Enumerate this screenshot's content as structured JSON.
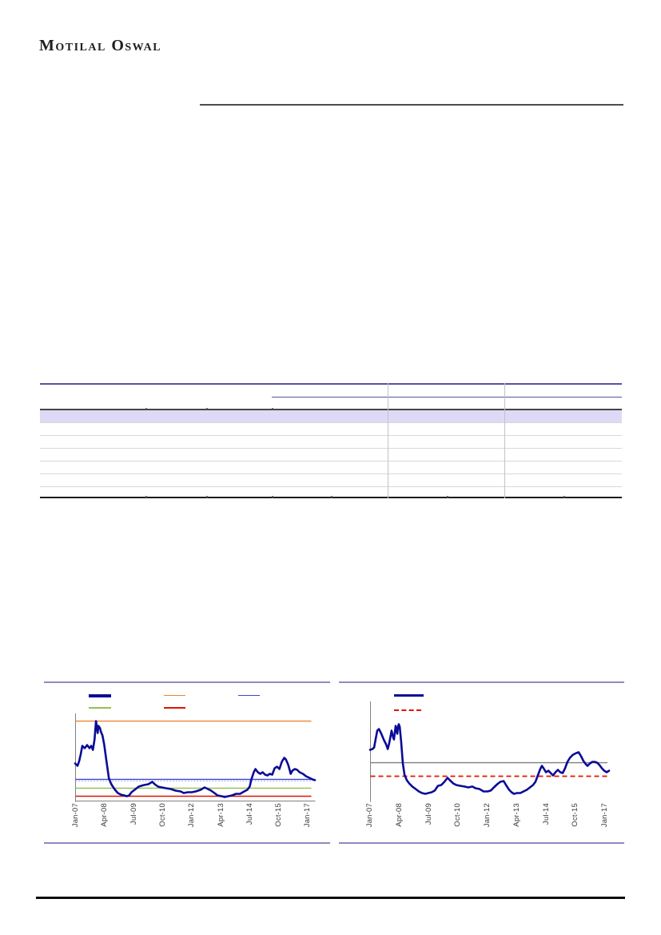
{
  "brand": {
    "logo_text": "Motilal Oswal"
  },
  "colors": {
    "header_rule": "#4d4d4d",
    "footer_rule": "#0e0e0e",
    "table_border_accent": "#5653a4",
    "table_dark_line": "#454545",
    "table_row_line": "#d9d9d9",
    "table_col_line": "#c3c3c3",
    "table_col_notch": "#4a4a4a",
    "table_highlight": "#dedaf5",
    "table_bottom": "#1c1c1c",
    "chart_frame": "#8f8ac5",
    "axis": "#808080",
    "tick_text": "#3a3a3a"
  },
  "chart_data": [
    {
      "type": "line",
      "title": "",
      "x_ticks": [
        "Jan-07",
        "Apr-08",
        "Jul-09",
        "Oct-10",
        "Jan-12",
        "Apr-13",
        "Jul-14",
        "Oct-15",
        "Jan-17"
      ],
      "ylim": [
        0,
        100
      ],
      "y_tick_labels": [],
      "grid": false,
      "legend_position": "top",
      "legend": [
        {
          "label": "",
          "swatch_color": "#0b0b97",
          "style": "solid-thick"
        },
        {
          "label": "",
          "swatch_color": "#ee8433",
          "style": "solid"
        },
        {
          "label": "",
          "swatch_color": "#3c45d0",
          "style": "solid"
        },
        {
          "label": "",
          "swatch_color": "#94bf4c",
          "style": "solid"
        },
        {
          "label": "",
          "swatch_color": "#e11300",
          "style": "solid"
        }
      ],
      "ref_lines": [
        {
          "name": "upper-band-line",
          "color": "#ee8433",
          "style": "solid",
          "value": 91.7
        },
        {
          "name": "mid-line",
          "color": "#3c45d0",
          "style": "solid",
          "value": 24.8
        },
        {
          "name": "mid-dotted-line",
          "color": "#97a0e8",
          "style": "dotted",
          "value": 23.0
        },
        {
          "name": "lower-band-line",
          "color": "#94bf4c",
          "style": "solid",
          "value": 14.7
        },
        {
          "name": "min-line",
          "color": "#e11300",
          "style": "solid",
          "value": 5.5
        }
      ],
      "series": [
        {
          "name": "primary-line",
          "color": "#0b0b97",
          "points": [
            [
              0,
              43.1
            ],
            [
              0.01,
              40.4
            ],
            [
              0.017,
              45.9
            ],
            [
              0.023,
              53.2
            ],
            [
              0.03,
              63.3
            ],
            [
              0.04,
              60.6
            ],
            [
              0.05,
              64.2
            ],
            [
              0.06,
              60.6
            ],
            [
              0.067,
              63.3
            ],
            [
              0.074,
              58.7
            ],
            [
              0.081,
              70.6
            ],
            [
              0.087,
              91.7
            ],
            [
              0.091,
              84.4
            ],
            [
              0.094,
              78
            ],
            [
              0.097,
              86.2
            ],
            [
              0.104,
              83.5
            ],
            [
              0.107,
              79.8
            ],
            [
              0.114,
              75.2
            ],
            [
              0.121,
              65.1
            ],
            [
              0.131,
              45
            ],
            [
              0.141,
              25.7
            ],
            [
              0.151,
              19.3
            ],
            [
              0.164,
              13.8
            ],
            [
              0.178,
              9.2
            ],
            [
              0.191,
              7.3
            ],
            [
              0.205,
              6.4
            ],
            [
              0.215,
              5.5
            ],
            [
              0.225,
              6.4
            ],
            [
              0.235,
              10.1
            ],
            [
              0.248,
              12.8
            ],
            [
              0.265,
              16.5
            ],
            [
              0.285,
              18.3
            ],
            [
              0.305,
              19.3
            ],
            [
              0.322,
              22
            ],
            [
              0.332,
              19.3
            ],
            [
              0.346,
              16.5
            ],
            [
              0.362,
              15.6
            ],
            [
              0.379,
              14.7
            ],
            [
              0.399,
              13.8
            ],
            [
              0.419,
              11.9
            ],
            [
              0.44,
              11
            ],
            [
              0.453,
              9.2
            ],
            [
              0.47,
              10.1
            ],
            [
              0.487,
              10.1
            ],
            [
              0.503,
              11
            ],
            [
              0.523,
              12.8
            ],
            [
              0.54,
              15.6
            ],
            [
              0.554,
              13.8
            ],
            [
              0.567,
              11.9
            ],
            [
              0.581,
              9.2
            ],
            [
              0.594,
              6.4
            ],
            [
              0.611,
              5.5
            ],
            [
              0.624,
              4.6
            ],
            [
              0.638,
              5.5
            ],
            [
              0.654,
              6.4
            ],
            [
              0.671,
              8.3
            ],
            [
              0.688,
              8.3
            ],
            [
              0.705,
              11
            ],
            [
              0.718,
              12.8
            ],
            [
              0.728,
              16.5
            ],
            [
              0.735,
              24.8
            ],
            [
              0.745,
              33
            ],
            [
              0.752,
              36.7
            ],
            [
              0.762,
              33
            ],
            [
              0.772,
              31.2
            ],
            [
              0.782,
              33
            ],
            [
              0.792,
              30.3
            ],
            [
              0.802,
              29.4
            ],
            [
              0.812,
              31.2
            ],
            [
              0.822,
              30.3
            ],
            [
              0.832,
              37.6
            ],
            [
              0.842,
              39.4
            ],
            [
              0.852,
              36.7
            ],
            [
              0.862,
              45
            ],
            [
              0.872,
              49.5
            ],
            [
              0.879,
              47.7
            ],
            [
              0.889,
              41.3
            ],
            [
              0.899,
              31.2
            ],
            [
              0.906,
              34.9
            ],
            [
              0.916,
              36.7
            ],
            [
              0.926,
              35.8
            ],
            [
              0.936,
              33
            ],
            [
              0.95,
              31.2
            ],
            [
              0.963,
              28.4
            ],
            [
              0.977,
              26.6
            ],
            [
              0.99,
              24.8
            ],
            [
              1,
              23.9
            ]
          ]
        }
      ]
    },
    {
      "type": "line",
      "title": "",
      "x_ticks": [
        "Jan-07",
        "Apr-08",
        "Jul-09",
        "Oct-10",
        "Jan-12",
        "Apr-13",
        "Jul-14",
        "Oct-15",
        "Jan-17"
      ],
      "ylim": [
        0,
        100
      ],
      "y_tick_labels": [],
      "grid": false,
      "legend_position": "top",
      "legend": [
        {
          "label": "",
          "swatch_color": "#0b0b97",
          "style": "solid-thick"
        },
        {
          "label": "",
          "swatch_color": "#e11300",
          "style": "dashed"
        }
      ],
      "ref_lines": [
        {
          "name": "average-line",
          "color": "#7f7f7f",
          "style": "solid",
          "value": 39.3
        },
        {
          "name": "threshold-line",
          "color": "#e11300",
          "style": "dashed",
          "value": 25.4
        }
      ],
      "series": [
        {
          "name": "primary-line",
          "color": "#0b0b97",
          "points": [
            [
              0,
              52.5
            ],
            [
              0.01,
              53.3
            ],
            [
              0.017,
              54.9
            ],
            [
              0.023,
              63.1
            ],
            [
              0.03,
              72.1
            ],
            [
              0.037,
              73.8
            ],
            [
              0.047,
              68.9
            ],
            [
              0.057,
              63.1
            ],
            [
              0.067,
              58.2
            ],
            [
              0.074,
              53.3
            ],
            [
              0.08,
              59
            ],
            [
              0.087,
              68
            ],
            [
              0.09,
              72.1
            ],
            [
              0.097,
              64.8
            ],
            [
              0.1,
              63.1
            ],
            [
              0.107,
              77
            ],
            [
              0.11,
              73
            ],
            [
              0.114,
              68.9
            ],
            [
              0.117,
              76.2
            ],
            [
              0.12,
              78.7
            ],
            [
              0.124,
              76.2
            ],
            [
              0.13,
              60.7
            ],
            [
              0.137,
              38.5
            ],
            [
              0.144,
              27
            ],
            [
              0.154,
              21.3
            ],
            [
              0.164,
              18
            ],
            [
              0.177,
              14.8
            ],
            [
              0.191,
              12.3
            ],
            [
              0.204,
              9.8
            ],
            [
              0.217,
              8.2
            ],
            [
              0.231,
              7.4
            ],
            [
              0.244,
              8.2
            ],
            [
              0.258,
              9
            ],
            [
              0.271,
              10.7
            ],
            [
              0.284,
              15.6
            ],
            [
              0.298,
              16.4
            ],
            [
              0.311,
              19.7
            ],
            [
              0.324,
              23.8
            ],
            [
              0.334,
              21.3
            ],
            [
              0.348,
              18
            ],
            [
              0.361,
              16.4
            ],
            [
              0.378,
              15.6
            ],
            [
              0.395,
              14.8
            ],
            [
              0.411,
              13.9
            ],
            [
              0.428,
              14.8
            ],
            [
              0.441,
              13.1
            ],
            [
              0.458,
              12.3
            ],
            [
              0.475,
              9.8
            ],
            [
              0.492,
              9.8
            ],
            [
              0.505,
              10.7
            ],
            [
              0.518,
              13.9
            ],
            [
              0.532,
              17.2
            ],
            [
              0.545,
              19.7
            ],
            [
              0.559,
              20.5
            ],
            [
              0.569,
              16.4
            ],
            [
              0.582,
              11.5
            ],
            [
              0.592,
              9
            ],
            [
              0.602,
              7.4
            ],
            [
              0.615,
              8.2
            ],
            [
              0.629,
              8.2
            ],
            [
              0.642,
              9.8
            ],
            [
              0.656,
              11.5
            ],
            [
              0.669,
              13.9
            ],
            [
              0.682,
              16.4
            ],
            [
              0.692,
              19.7
            ],
            [
              0.702,
              26.2
            ],
            [
              0.712,
              32.8
            ],
            [
              0.719,
              36.1
            ],
            [
              0.726,
              33.6
            ],
            [
              0.736,
              29.5
            ],
            [
              0.746,
              31.1
            ],
            [
              0.756,
              28.7
            ],
            [
              0.766,
              26.2
            ],
            [
              0.776,
              29.5
            ],
            [
              0.786,
              32
            ],
            [
              0.796,
              29.5
            ],
            [
              0.806,
              28.7
            ],
            [
              0.816,
              33.6
            ],
            [
              0.826,
              40.2
            ],
            [
              0.836,
              44.3
            ],
            [
              0.849,
              47.5
            ],
            [
              0.863,
              49.2
            ],
            [
              0.873,
              50
            ],
            [
              0.883,
              45.9
            ],
            [
              0.893,
              41
            ],
            [
              0.903,
              37.7
            ],
            [
              0.91,
              36.1
            ],
            [
              0.92,
              38.5
            ],
            [
              0.93,
              40.2
            ],
            [
              0.94,
              40.2
            ],
            [
              0.95,
              39.3
            ],
            [
              0.96,
              36.9
            ],
            [
              0.97,
              33.6
            ],
            [
              0.98,
              31.1
            ],
            [
              0.99,
              29.5
            ],
            [
              1,
              31.1
            ]
          ]
        }
      ]
    }
  ]
}
